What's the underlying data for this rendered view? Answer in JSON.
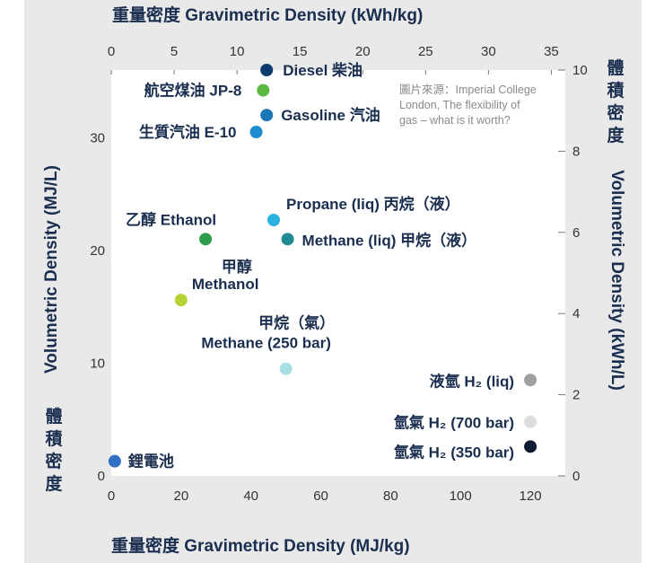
{
  "chart_data": {
    "type": "scatter",
    "title_top": "重量密度 Gravimetric Density (kWh/kg)",
    "xlabel": "重量密度 Gravimetric Density (MJ/kg)",
    "ylabel": "Volumetric Density (MJ/L)",
    "ylabel_cn": "體積密度",
    "ylabel_right": "Volumetric Density (kWh/L)",
    "ylabel_right_cn": "體積密度",
    "xlim": [
      0,
      130
    ],
    "ylim": [
      0,
      36
    ],
    "x_ticks": [
      "0",
      "20",
      "40",
      "60",
      "80",
      "100",
      "120"
    ],
    "y_ticks": [
      "0",
      "10",
      "20",
      "30"
    ],
    "x_top_ticks": [
      "0",
      "5",
      "10",
      "15",
      "20",
      "25",
      "30",
      "35"
    ],
    "y_right_ticks": [
      "0",
      "2",
      "4",
      "6",
      "8",
      "10"
    ],
    "source_note": [
      "圖片來源：Imperial College",
      "London, The flexibility of",
      "gas – what is it worth?"
    ],
    "points": [
      {
        "label": "Diesel 柴油",
        "x": 44.5,
        "y": 36.0,
        "color": "#0b3c6e"
      },
      {
        "label": "航空煤油 JP-8",
        "x": 43.5,
        "y": 34.2,
        "color": "#5cb842"
      },
      {
        "label": "Gasoline 汽油",
        "x": 44.5,
        "y": 32.0,
        "color": "#1d77b6"
      },
      {
        "label": "生質汽油 E-10",
        "x": 41.5,
        "y": 30.5,
        "color": "#1c8ccf"
      },
      {
        "label": "Propane (liq) 丙烷（液）",
        "x": 46.5,
        "y": 22.7,
        "color": "#2ab1e0"
      },
      {
        "label": "乙醇 Ethanol",
        "x": 27.0,
        "y": 21.0,
        "color": "#2f9e4a"
      },
      {
        "label": "Methane (liq) 甲烷（液）",
        "x": 50.5,
        "y": 21.0,
        "color": "#1f8a8f"
      },
      {
        "label": "甲醇 Methanol",
        "x": 20.0,
        "y": 15.6,
        "color": "#b5d335"
      },
      {
        "label": "甲烷（氣） Methane (250 bar)",
        "x": 50.0,
        "y": 9.5,
        "color": "#a9dfe2"
      },
      {
        "label": "液氫 H₂ (liq)",
        "x": 120.0,
        "y": 8.5,
        "color": "#a0a0a0"
      },
      {
        "label": "氫氣 H₂ (700 bar)",
        "x": 120.0,
        "y": 4.8,
        "color": "#dcdcdc"
      },
      {
        "label": "氫氣 H₂ (350 bar)",
        "x": 120.0,
        "y": 2.6,
        "color": "#0d1b33"
      },
      {
        "label": "鋰電池",
        "x": 1.0,
        "y": 1.3,
        "color": "#2f6fc4"
      }
    ]
  }
}
